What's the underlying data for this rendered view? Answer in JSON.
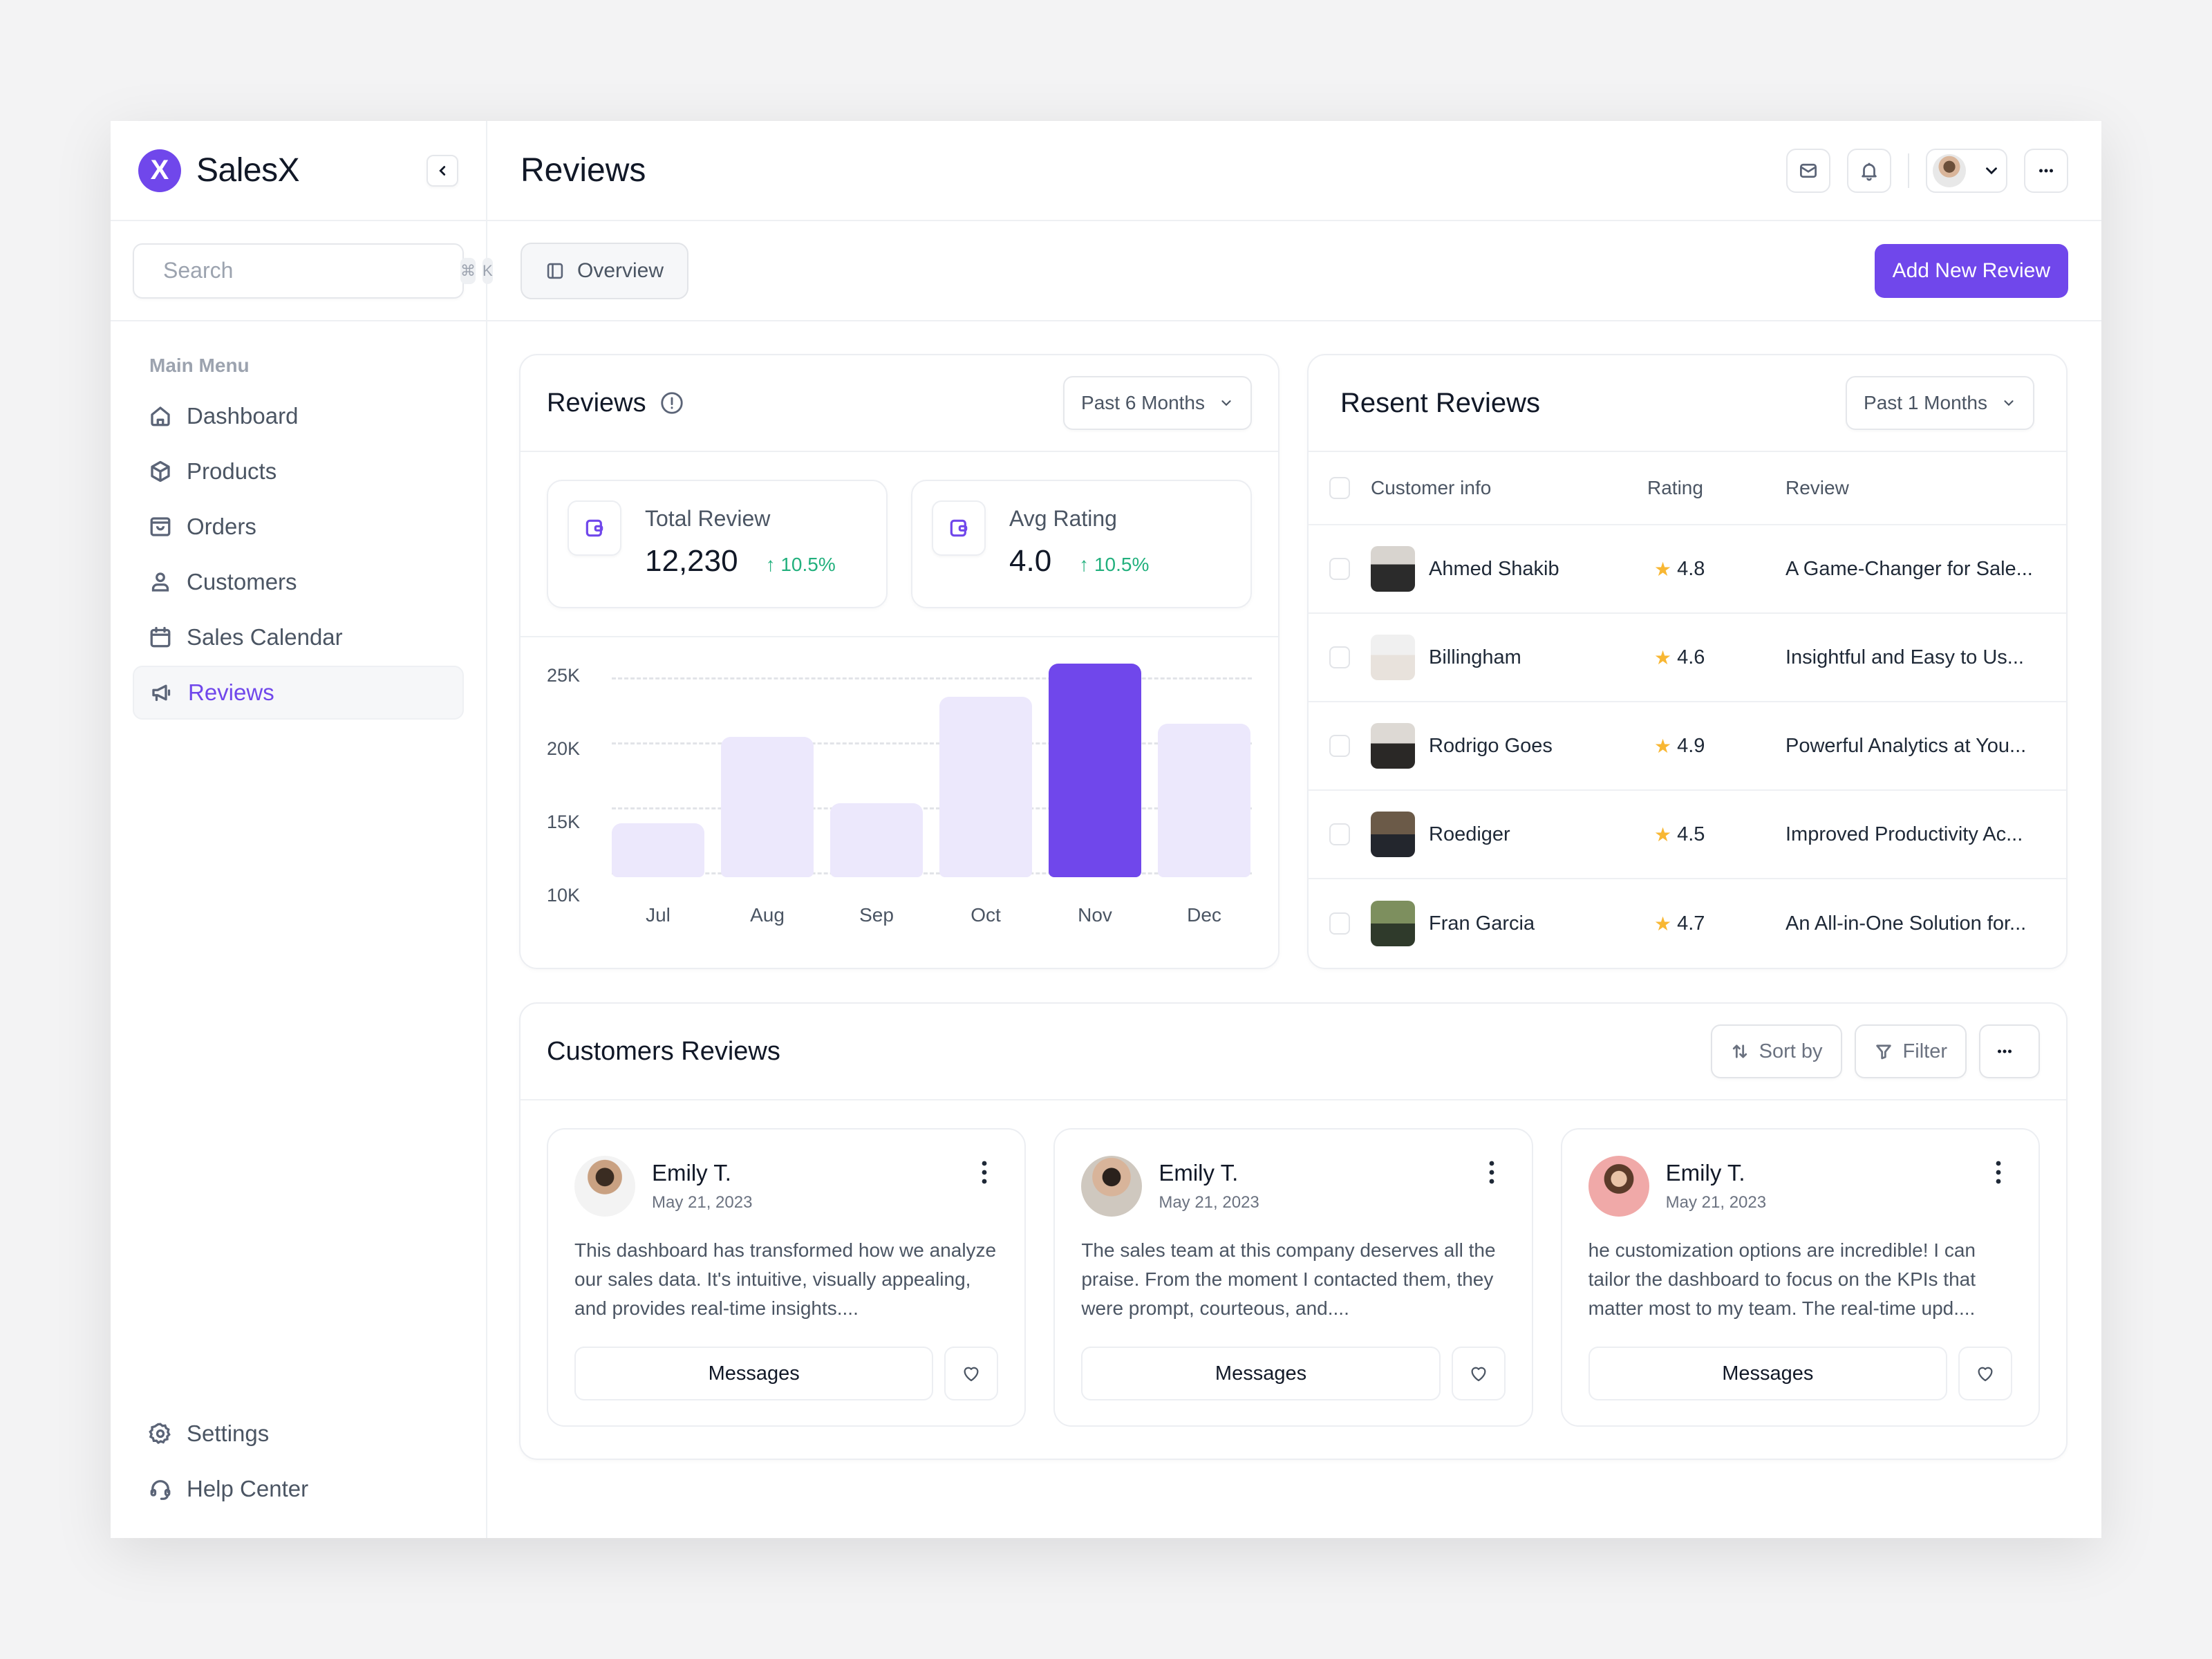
{
  "brand": {
    "name": "SalesX",
    "logo_letter": "X",
    "accent": "#7047eb"
  },
  "search": {
    "placeholder": "Search",
    "shortcut": [
      "⌘",
      "K"
    ]
  },
  "sidebar": {
    "section_label": "Main Menu",
    "items": [
      {
        "label": "Dashboard",
        "icon": "home-icon",
        "active": false
      },
      {
        "label": "Products",
        "icon": "box-icon",
        "active": false
      },
      {
        "label": "Orders",
        "icon": "shopping-bag-icon",
        "active": false
      },
      {
        "label": "Customers",
        "icon": "user-icon",
        "active": false
      },
      {
        "label": "Sales Calendar",
        "icon": "calendar-icon",
        "active": false
      },
      {
        "label": "Reviews",
        "icon": "megaphone-icon",
        "active": true
      }
    ],
    "bottom": [
      {
        "label": "Settings",
        "icon": "gear-icon"
      },
      {
        "label": "Help Center",
        "icon": "headset-icon"
      }
    ]
  },
  "header": {
    "title": "Reviews"
  },
  "tabs": [
    {
      "label": "Overview",
      "active": true
    }
  ],
  "actions": {
    "add_review": "Add New Review"
  },
  "reviews_card": {
    "title": "Reviews",
    "range": "Past 6 Months",
    "stats": [
      {
        "label": "Total Review",
        "value": "12,230",
        "change": "10.5%",
        "direction": "up"
      },
      {
        "label": "Avg Rating",
        "value": "4.0",
        "change": "10.5%",
        "direction": "up"
      }
    ]
  },
  "chart_data": {
    "type": "bar",
    "title": "Reviews",
    "categories": [
      "Jul",
      "Aug",
      "Sep",
      "Oct",
      "Nov",
      "Dec"
    ],
    "values": [
      13000,
      19500,
      14500,
      22500,
      25000,
      20500
    ],
    "highlight_index": 4,
    "yticks": [
      "25K",
      "20K",
      "15K",
      "10K"
    ],
    "ylim": [
      10000,
      25000
    ],
    "xlabel": "",
    "ylabel": "",
    "grid": "dashed horizontal",
    "colors": {
      "default": "#ece8fc",
      "highlight": "#7047eb"
    }
  },
  "recent_reviews": {
    "title": "Resent Reviews",
    "range": "Past 1 Months",
    "columns": [
      "Customer info",
      "Rating",
      "Review"
    ],
    "rows": [
      {
        "name": "Ahmed Shakib",
        "rating": "4.8",
        "review": "A Game-Changer for Sale..."
      },
      {
        "name": "Billingham",
        "rating": "4.6",
        "review": "Insightful and Easy to Us..."
      },
      {
        "name": "Rodrigo Goes",
        "rating": "4.9",
        "review": "Powerful Analytics at You..."
      },
      {
        "name": "Roediger",
        "rating": "4.5",
        "review": "Improved Productivity Ac..."
      },
      {
        "name": "Fran Garcia",
        "rating": "4.7",
        "review": "An All-in-One Solution for..."
      }
    ]
  },
  "customer_reviews": {
    "title": "Customers Reviews",
    "sort_label": "Sort by",
    "filter_label": "Filter",
    "cards": [
      {
        "name": "Emily T.",
        "date": "May 21, 2023",
        "text": "This dashboard has transformed how we analyze our sales data. It's intuitive, visually appealing, and provides real-time insights....",
        "button": "Messages"
      },
      {
        "name": "Emily T.",
        "date": "May 21, 2023",
        "text": "The sales team at this company deserves all the praise. From the moment I contacted them, they were prompt, courteous, and....",
        "button": "Messages"
      },
      {
        "name": "Emily T.",
        "date": "May 21, 2023",
        "text": "he customization options are incredible! I can tailor the dashboard to focus on the KPIs that matter most to my team. The real-time upd....",
        "button": "Messages"
      }
    ]
  }
}
